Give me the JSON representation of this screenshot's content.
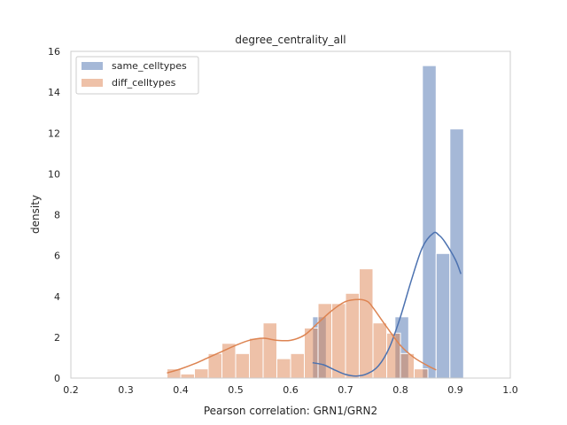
{
  "chart_data": {
    "type": "bar",
    "title": "degree_centrality_all",
    "xlabel": "Pearson correlation: GRN1/GRN2",
    "ylabel": "density",
    "xlim": [
      0.2,
      1.0
    ],
    "ylim": [
      0,
      16
    ],
    "xticks": [
      "0.2",
      "0.3",
      "0.4",
      "0.5",
      "0.6",
      "0.7",
      "0.8",
      "0.9",
      "1.0"
    ],
    "yticks": [
      "0",
      "2",
      "4",
      "6",
      "8",
      "10",
      "12",
      "14",
      "16"
    ],
    "grid": false,
    "legend_position": "top-left",
    "series": [
      {
        "name": "same_celltypes",
        "color": "#4c72b0",
        "bins": [
          {
            "x0": 0.64,
            "x1": 0.665,
            "value": 3.0
          },
          {
            "x0": 0.79,
            "x1": 0.815,
            "value": 3.0
          },
          {
            "x0": 0.84,
            "x1": 0.865,
            "value": 15.3
          },
          {
            "x0": 0.865,
            "x1": 0.89,
            "value": 6.1
          },
          {
            "x0": 0.89,
            "x1": 0.915,
            "value": 12.2
          }
        ],
        "kde": {
          "x": [
            0.64,
            0.66,
            0.68,
            0.7,
            0.72,
            0.74,
            0.76,
            0.78,
            0.8,
            0.82,
            0.84,
            0.86,
            0.87,
            0.88,
            0.9,
            0.91
          ],
          "y": [
            0.75,
            0.65,
            0.4,
            0.18,
            0.1,
            0.22,
            0.6,
            1.5,
            3.0,
            4.8,
            6.4,
            7.1,
            7.0,
            6.7,
            5.8,
            5.1
          ]
        }
      },
      {
        "name": "diff_celltypes",
        "color": "#dd8452",
        "bins": [
          {
            "x0": 0.375,
            "x1": 0.4,
            "value": 0.45
          },
          {
            "x0": 0.4,
            "x1": 0.425,
            "value": 0.2
          },
          {
            "x0": 0.425,
            "x1": 0.45,
            "value": 0.45
          },
          {
            "x0": 0.45,
            "x1": 0.475,
            "value": 1.2
          },
          {
            "x0": 0.475,
            "x1": 0.5,
            "value": 1.7
          },
          {
            "x0": 0.5,
            "x1": 0.525,
            "value": 1.2
          },
          {
            "x0": 0.525,
            "x1": 0.55,
            "value": 1.95
          },
          {
            "x0": 0.55,
            "x1": 0.575,
            "value": 2.7
          },
          {
            "x0": 0.575,
            "x1": 0.6,
            "value": 0.95
          },
          {
            "x0": 0.6,
            "x1": 0.625,
            "value": 1.2
          },
          {
            "x0": 0.625,
            "x1": 0.65,
            "value": 2.45
          },
          {
            "x0": 0.65,
            "x1": 0.675,
            "value": 3.65
          },
          {
            "x0": 0.675,
            "x1": 0.7,
            "value": 3.65
          },
          {
            "x0": 0.7,
            "x1": 0.725,
            "value": 4.15
          },
          {
            "x0": 0.725,
            "x1": 0.75,
            "value": 5.35
          },
          {
            "x0": 0.75,
            "x1": 0.775,
            "value": 2.7
          },
          {
            "x0": 0.775,
            "x1": 0.8,
            "value": 2.2
          },
          {
            "x0": 0.8,
            "x1": 0.825,
            "value": 1.2
          },
          {
            "x0": 0.825,
            "x1": 0.85,
            "value": 0.45
          }
        ],
        "kde": {
          "x": [
            0.375,
            0.4,
            0.425,
            0.45,
            0.475,
            0.5,
            0.525,
            0.55,
            0.575,
            0.6,
            0.625,
            0.65,
            0.675,
            0.7,
            0.725,
            0.74,
            0.75,
            0.775,
            0.8,
            0.825,
            0.85,
            0.865
          ],
          "y": [
            0.25,
            0.45,
            0.7,
            1.0,
            1.3,
            1.6,
            1.85,
            1.95,
            1.85,
            1.85,
            2.1,
            2.7,
            3.3,
            3.75,
            3.85,
            3.75,
            3.45,
            2.5,
            1.6,
            1.0,
            0.6,
            0.4
          ]
        }
      }
    ]
  }
}
